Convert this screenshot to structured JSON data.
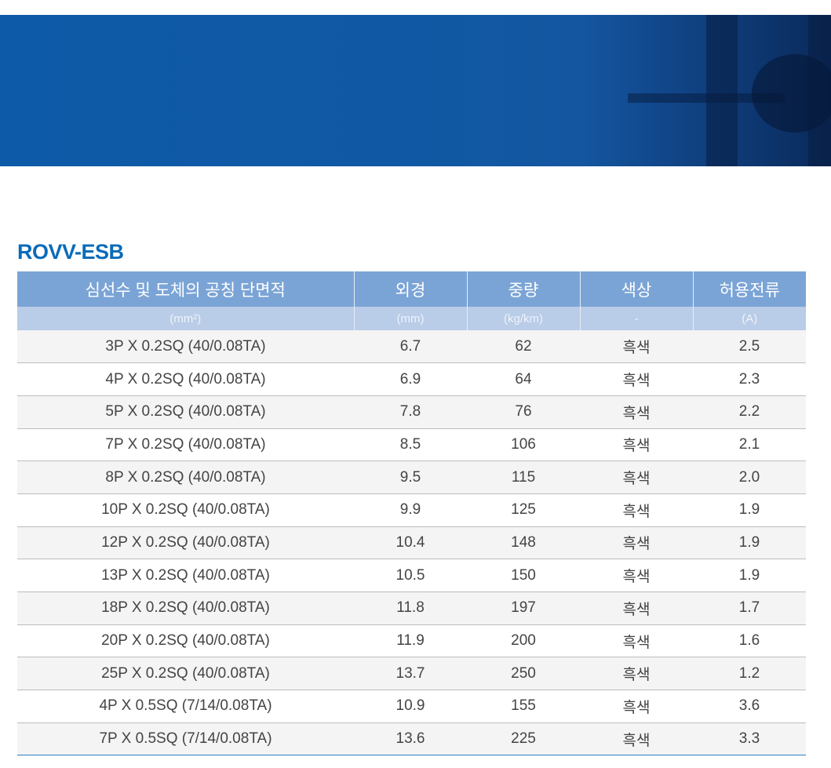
{
  "title": "ROVV-ESB",
  "header": [
    "심선수 및 도체의 공칭 단면적",
    "외경",
    "중량",
    "색상",
    "허용전류"
  ],
  "units": [
    "(mm²)",
    "(mm)",
    "(kg/km)",
    "-",
    "(A)"
  ],
  "rows": [
    [
      "3P X 0.2SQ (40/0.08TA)",
      "6.7",
      "62",
      "흑색",
      "2.5"
    ],
    [
      "4P X 0.2SQ (40/0.08TA)",
      "6.9",
      "64",
      "흑색",
      "2.3"
    ],
    [
      "5P X 0.2SQ (40/0.08TA)",
      "7.8",
      "76",
      "흑색",
      "2.2"
    ],
    [
      "7P X 0.2SQ (40/0.08TA)",
      "8.5",
      "106",
      "흑색",
      "2.1"
    ],
    [
      "8P X 0.2SQ (40/0.08TA)",
      "9.5",
      "115",
      "흑색",
      "2.0"
    ],
    [
      "10P X 0.2SQ (40/0.08TA)",
      "9.9",
      "125",
      "흑색",
      "1.9"
    ],
    [
      "12P X 0.2SQ (40/0.08TA)",
      "10.4",
      "148",
      "흑색",
      "1.9"
    ],
    [
      "13P X 0.2SQ (40/0.08TA)",
      "10.5",
      "150",
      "흑색",
      "1.9"
    ],
    [
      "18P X 0.2SQ (40/0.08TA)",
      "11.8",
      "197",
      "흑색",
      "1.7"
    ],
    [
      "20P X 0.2SQ (40/0.08TA)",
      "11.9",
      "200",
      "흑색",
      "1.6"
    ],
    [
      "25P X 0.2SQ (40/0.08TA)",
      "13.7",
      "250",
      "흑색",
      "1.2"
    ],
    [
      "4P X 0.5SQ (7/14/0.08TA)",
      "10.9",
      "155",
      "흑색",
      "3.6"
    ],
    [
      "7P X 0.5SQ (7/14/0.08TA)",
      "13.6",
      "225",
      "흑색",
      "3.3"
    ]
  ],
  "colors": {
    "title": "#0a6bb8",
    "header": "#7ba4d6",
    "subheader": "#b9cce8",
    "accent_line": "#2d7cc0"
  }
}
